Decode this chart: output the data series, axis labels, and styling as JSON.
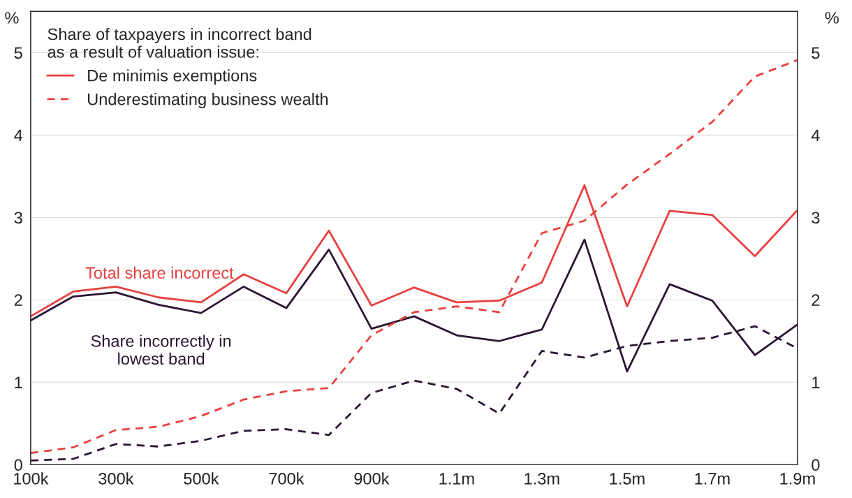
{
  "chart_data": {
    "type": "line",
    "categories": [
      "100k",
      null,
      "300k",
      null,
      "500k",
      null,
      "700k",
      null,
      "900k",
      null,
      "1.1m",
      null,
      "1.3m",
      null,
      "1.5m",
      null,
      "1.7m",
      null,
      "1.9m"
    ],
    "series": [
      {
        "name": "De minimis exemptions",
        "color": "#e8403f",
        "line_style": "solid",
        "values": [
          1.8,
          2.1,
          2.16,
          2.03,
          1.97,
          2.31,
          2.08,
          2.84,
          1.93,
          2.15,
          1.97,
          1.99,
          2.21,
          3.39,
          1.92,
          3.08,
          3.03,
          2.53,
          3.09
        ]
      },
      {
        "color": "#2b1533",
        "line_style": "solid",
        "values": [
          1.75,
          2.04,
          2.09,
          1.94,
          1.84,
          2.16,
          1.9,
          2.61,
          1.65,
          1.8,
          1.57,
          1.5,
          1.64,
          2.73,
          1.13,
          2.19,
          1.99,
          1.33,
          1.7
        ]
      },
      {
        "name": "Underestimating business wealth",
        "color": "#e8403f",
        "line_style": "dashed",
        "values": [
          0.14,
          0.21,
          0.42,
          0.46,
          0.59,
          0.79,
          0.89,
          0.93,
          1.57,
          1.85,
          1.92,
          1.85,
          2.81,
          2.96,
          3.4,
          3.77,
          4.16,
          4.71,
          4.91
        ]
      },
      {
        "color": "#2b1533",
        "line_style": "dashed",
        "values": [
          0.05,
          0.07,
          0.25,
          0.22,
          0.29,
          0.41,
          0.43,
          0.36,
          0.87,
          1.02,
          0.92,
          0.62,
          1.38,
          1.3,
          1.44,
          1.5,
          1.54,
          1.68,
          1.41
        ]
      }
    ],
    "annotations": [
      "Total share incorrect",
      "Share incorrectly in\nlowest band"
    ],
    "legend_title": "Share of taxpayers in incorrect band\nas a result of valuation issue:",
    "legend": "top left",
    "ylabel": "%",
    "y2label": "%",
    "ylim": [
      0,
      5.5
    ],
    "yticks": [
      0,
      1,
      2,
      3,
      4,
      5
    ],
    "y2lim": [
      0,
      5.5
    ],
    "y2ticks": [
      0,
      1,
      2,
      3,
      4,
      5
    ],
    "grid": "y",
    "marker": "none"
  }
}
